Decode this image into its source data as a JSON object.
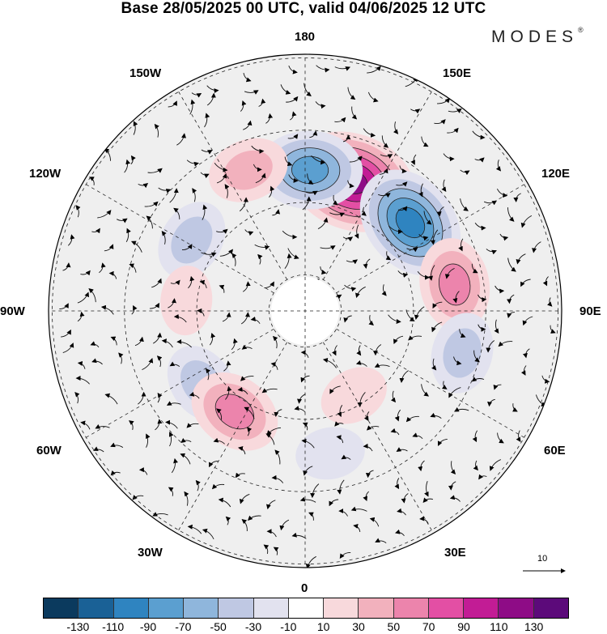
{
  "title": "Base 28/05/2025 00 UTC, valid 04/06/2025 12 UTC",
  "brand": "MODES",
  "brand_mark": "®",
  "longitude_labels": [
    {
      "id": "lon-180",
      "text": "180"
    },
    {
      "id": "lon-150e",
      "text": "150E"
    },
    {
      "id": "lon-120e",
      "text": "120E"
    },
    {
      "id": "lon-90e",
      "text": "90E"
    },
    {
      "id": "lon-60e",
      "text": "60E"
    },
    {
      "id": "lon-30e",
      "text": "30E"
    },
    {
      "id": "lon-0",
      "text": "0"
    },
    {
      "id": "lon-30w",
      "text": "30W"
    },
    {
      "id": "lon-60w",
      "text": "60W"
    },
    {
      "id": "lon-90w",
      "text": "90W"
    },
    {
      "id": "lon-120w",
      "text": "120W"
    },
    {
      "id": "lon-150w",
      "text": "150W"
    }
  ],
  "vector_scale": {
    "value": "10"
  },
  "colorbar": {
    "colors": [
      "#0b3a5e",
      "#1a6196",
      "#2f84c0",
      "#5b9fd0",
      "#8fb6dc",
      "#bfc8e3",
      "#e2e2ef",
      "#ffffff",
      "#f8d9dc",
      "#f2b1bd",
      "#ec84ac",
      "#e34fa4",
      "#c21c95",
      "#8e0c86",
      "#5c0a7a"
    ],
    "labels": [
      "-130",
      "-110",
      "-90",
      "-70",
      "-50",
      "-30",
      "-10",
      "10",
      "30",
      "50",
      "70",
      "90",
      "110",
      "130"
    ]
  },
  "anomalies": [
    {
      "name": "positive-anomaly-east-siberia",
      "lon": 160,
      "colat": 38,
      "level": 6
    },
    {
      "name": "negative-anomaly-north-pacific",
      "lon": 178,
      "colat": 39,
      "level": -4
    },
    {
      "name": "negative-anomaly-siberia",
      "lon": 130,
      "colat": 38,
      "level": -5
    },
    {
      "name": "positive-anomaly-central-siberia",
      "lon": 100,
      "colat": 42,
      "level": 3
    },
    {
      "name": "negative-anomaly-central-asia",
      "lon": 75,
      "colat": 45,
      "level": -2
    },
    {
      "name": "positive-anomaly-gulf-alaska",
      "lon": -158,
      "colat": 42,
      "level": 2
    },
    {
      "name": "negative-anomaly-west-canada",
      "lon": -122,
      "colat": 37,
      "level": -2
    },
    {
      "name": "positive-anomaly-canada",
      "lon": -95,
      "colat": 33,
      "level": 1
    },
    {
      "name": "negative-anomaly-labrador",
      "lon": -55,
      "colat": 35,
      "level": -2
    },
    {
      "name": "positive-anomaly-north-atlantic",
      "lon": -35,
      "colat": 34,
      "level": 3
    },
    {
      "name": "negative-anomaly-europe",
      "lon": 10,
      "colat": 40,
      "level": -1
    },
    {
      "name": "positive-anomaly-scandinavia",
      "lon": 30,
      "colat": 27,
      "level": 1
    }
  ]
}
